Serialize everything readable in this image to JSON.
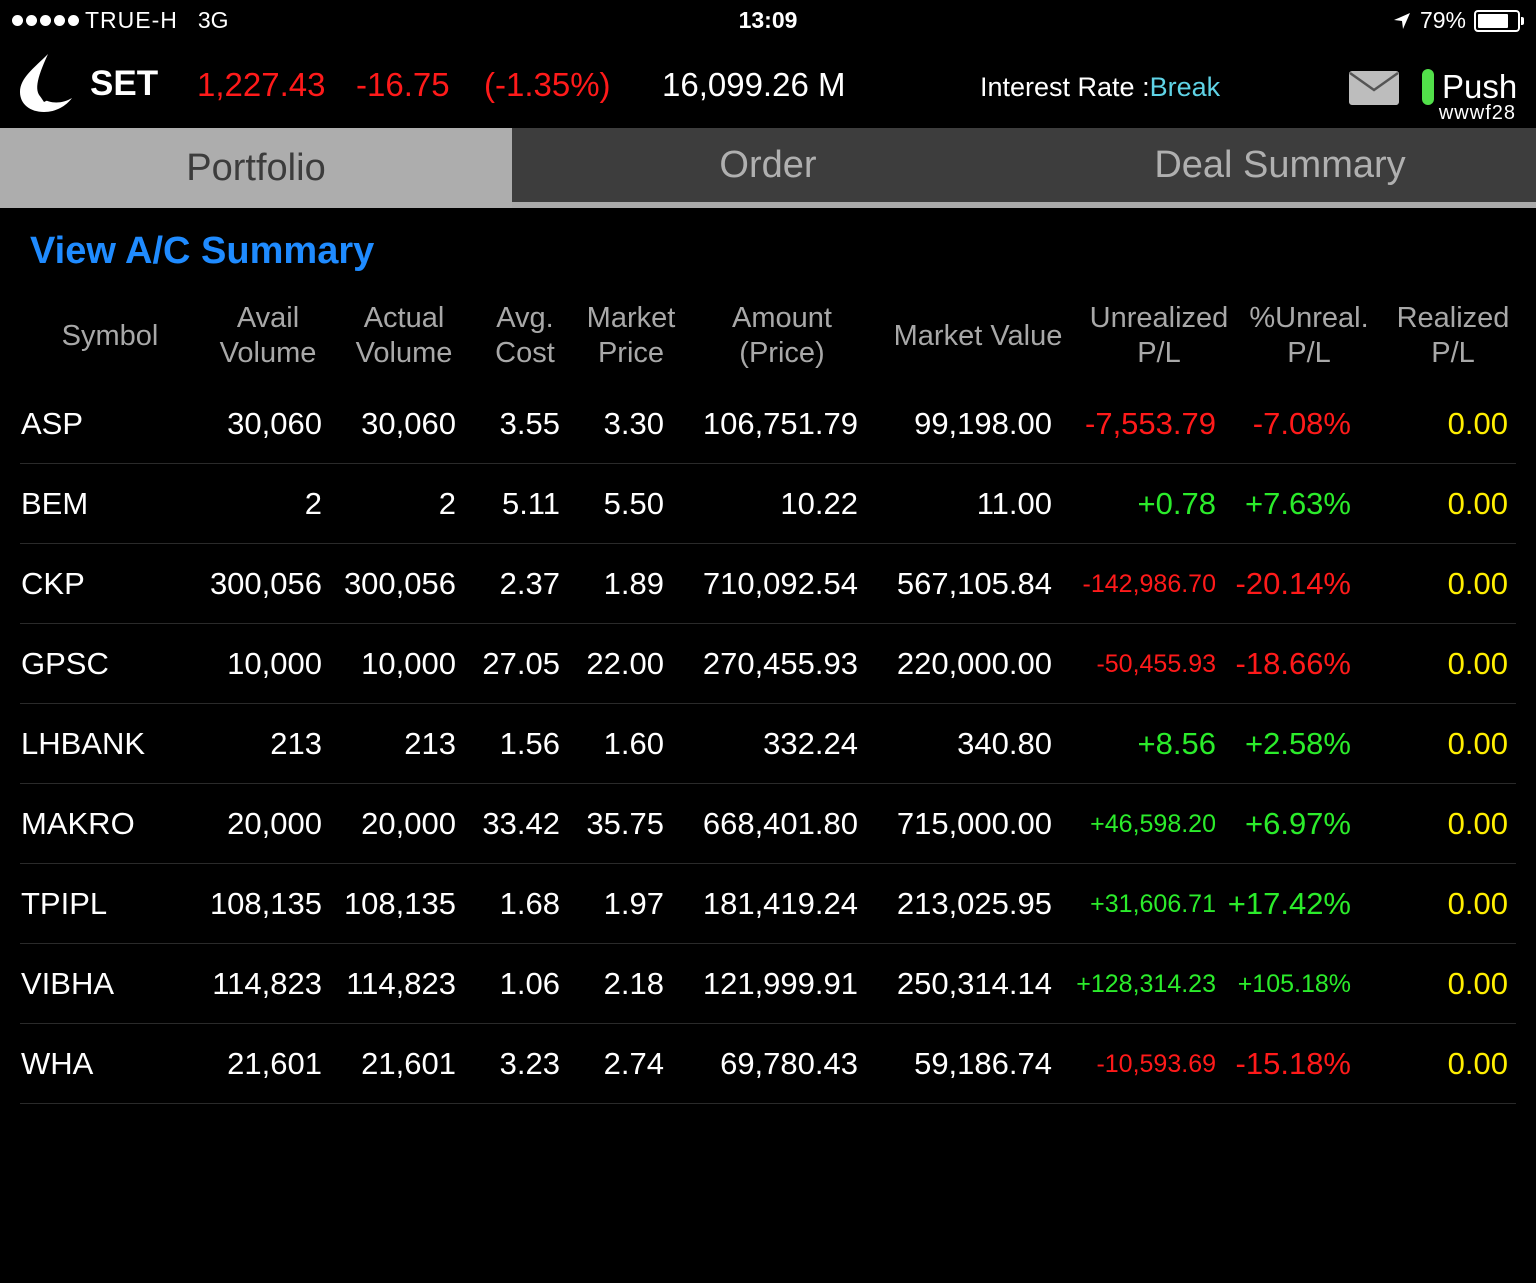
{
  "status_bar": {
    "carrier": "TRUE-H",
    "network": "3G",
    "time": "13:09",
    "battery": "79%",
    "battery_level": 0.79
  },
  "market": {
    "index_name": "SET",
    "index_value": "1,227.43",
    "change": "-16.75",
    "change_pct": "(-1.35%)",
    "volume": "16,099.26 M",
    "interest_label": "Interest Rate :",
    "interest_value": "Break",
    "push_label": "Push",
    "user": "wwwf28"
  },
  "tabs": [
    {
      "label": "Portfolio",
      "active": true
    },
    {
      "label": "Order",
      "active": false
    },
    {
      "label": "Deal Summary",
      "active": false
    }
  ],
  "summary_link": "View A/C Summary",
  "columns": [
    {
      "key": "symbol",
      "label": "Symbol"
    },
    {
      "key": "avail",
      "label": "Avail\nVolume"
    },
    {
      "key": "actual",
      "label": "Actual\nVolume"
    },
    {
      "key": "avg_cost",
      "label": "Avg.\nCost"
    },
    {
      "key": "price",
      "label": "Market\nPrice"
    },
    {
      "key": "amount",
      "label": "Amount\n(Price)"
    },
    {
      "key": "market_value",
      "label": "Market Value"
    },
    {
      "key": "unrealized",
      "label": "Unrealized\nP/L"
    },
    {
      "key": "unreal_pct",
      "label": "%Unreal.\nP/L"
    },
    {
      "key": "realized",
      "label": "Realized\nP/L"
    }
  ],
  "rows": [
    {
      "symbol": "ASP",
      "avail": "30,060",
      "actual": "30,060",
      "avg_cost": "3.55",
      "price": "3.30",
      "amount": "106,751.79",
      "market_value": "99,198.00",
      "unrealized": "-7,553.79",
      "unreal_pct": "-7.08%",
      "realized": "0.00"
    },
    {
      "symbol": "BEM",
      "avail": "2",
      "actual": "2",
      "avg_cost": "5.11",
      "price": "5.50",
      "amount": "10.22",
      "market_value": "11.00",
      "unrealized": "+0.78",
      "unreal_pct": "+7.63%",
      "realized": "0.00"
    },
    {
      "symbol": "CKP",
      "avail": "300,056",
      "actual": "300,056",
      "avg_cost": "2.37",
      "price": "1.89",
      "amount": "710,092.54",
      "market_value": "567,105.84",
      "unrealized": "-142,986.70",
      "unreal_pct": "-20.14%",
      "realized": "0.00"
    },
    {
      "symbol": "GPSC",
      "avail": "10,000",
      "actual": "10,000",
      "avg_cost": "27.05",
      "price": "22.00",
      "amount": "270,455.93",
      "market_value": "220,000.00",
      "unrealized": "-50,455.93",
      "unreal_pct": "-18.66%",
      "realized": "0.00"
    },
    {
      "symbol": "LHBANK",
      "avail": "213",
      "actual": "213",
      "avg_cost": "1.56",
      "price": "1.60",
      "amount": "332.24",
      "market_value": "340.80",
      "unrealized": "+8.56",
      "unreal_pct": "+2.58%",
      "realized": "0.00"
    },
    {
      "symbol": "MAKRO",
      "avail": "20,000",
      "actual": "20,000",
      "avg_cost": "33.42",
      "price": "35.75",
      "amount": "668,401.80",
      "market_value": "715,000.00",
      "unrealized": "+46,598.20",
      "unreal_pct": "+6.97%",
      "realized": "0.00"
    },
    {
      "symbol": "TPIPL",
      "avail": "108,135",
      "actual": "108,135",
      "avg_cost": "1.68",
      "price": "1.97",
      "amount": "181,419.24",
      "market_value": "213,025.95",
      "unrealized": "+31,606.71",
      "unreal_pct": "+17.42%",
      "realized": "0.00"
    },
    {
      "symbol": "VIBHA",
      "avail": "114,823",
      "actual": "114,823",
      "avg_cost": "1.06",
      "price": "2.18",
      "amount": "121,999.91",
      "market_value": "250,314.14",
      "unrealized": "+128,314.23",
      "unreal_pct": "+105.18%",
      "realized": "0.00"
    },
    {
      "symbol": "WHA",
      "avail": "21,601",
      "actual": "21,601",
      "avg_cost": "3.23",
      "price": "2.74",
      "amount": "69,780.43",
      "market_value": "59,186.74",
      "unrealized": "-10,593.69",
      "unreal_pct": "-15.18%",
      "realized": "0.00"
    }
  ],
  "colors": {
    "positive": "#2bec2b",
    "negative": "#ff1a1a",
    "realized": "#ffee00",
    "link": "#1f8bff",
    "interest_value": "#5fd3e6",
    "push_indicator": "#52e04a"
  },
  "icons": {
    "logo": "brand-logo-icon",
    "location": "location-arrow-icon",
    "battery": "battery-icon",
    "mail": "mail-icon"
  }
}
